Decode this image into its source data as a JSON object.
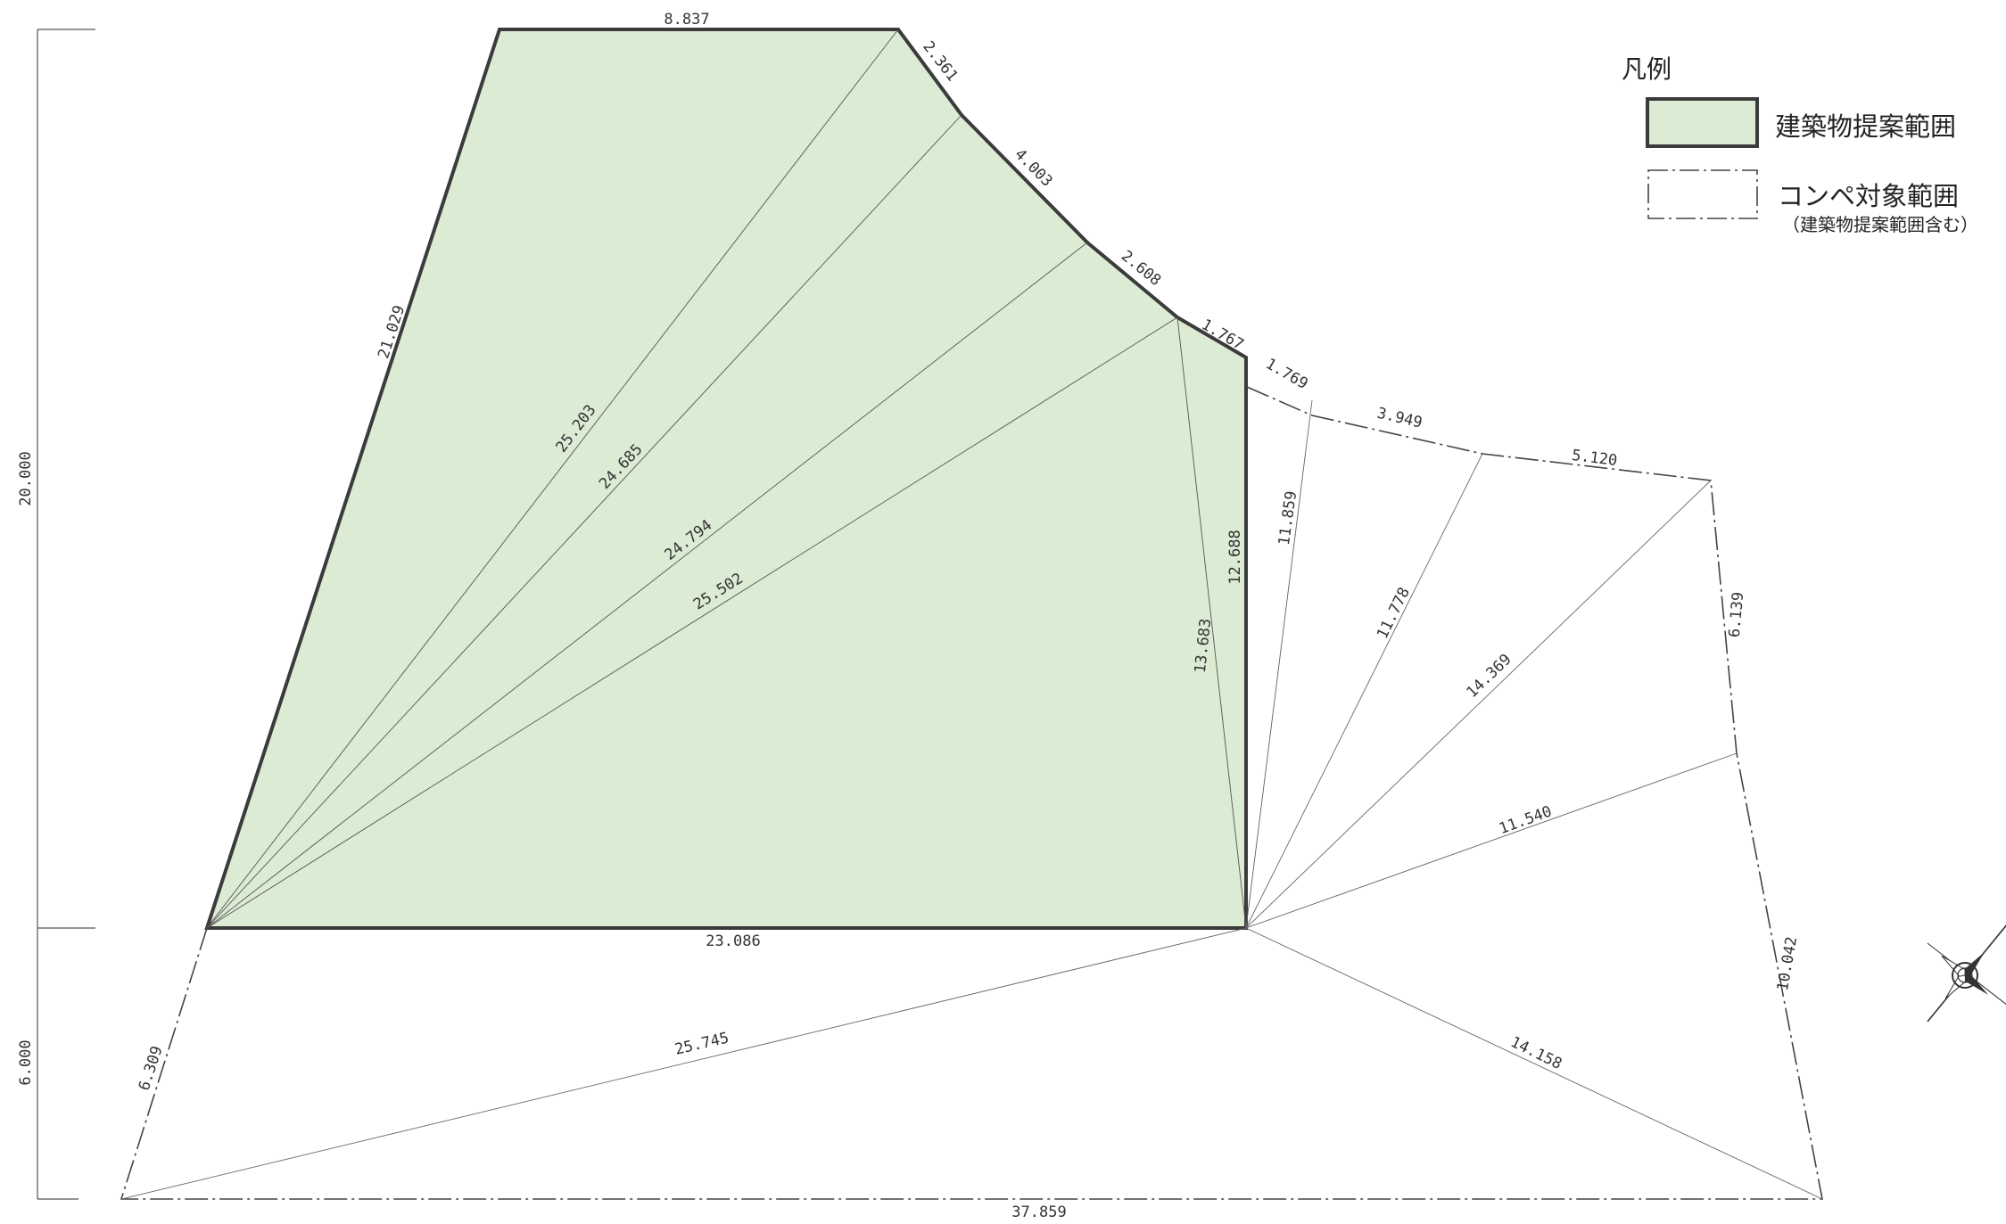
{
  "legend": {
    "title": "凡例",
    "building_area_label": "建築物提案範囲",
    "competition_area_label": "コンペ対象範囲",
    "competition_area_note": "（建築物提案範囲含む）",
    "building_fill_color": "#dbebd4",
    "outline_color": "#3b3b3b"
  },
  "vertical_dimensions": {
    "upper": "20.000",
    "lower": "6.000"
  },
  "building_area_dimensions": {
    "top": "8.837",
    "upper_right": "2.361",
    "right_1": "4.003",
    "right_2": "2.608",
    "right_3": "1.767",
    "right_vertical": "12.688",
    "bottom": "23.086",
    "left": "21.029",
    "diagonal_1": "25.203",
    "diagonal_2": "24.685",
    "diagonal_3": "24.794",
    "diagonal_4": "25.502",
    "diagonal_5": "13.683"
  },
  "competition_area_dimensions": {
    "edge_1": "1.769",
    "edge_2": "3.949",
    "edge_3": "5.120",
    "edge_4": "6.139",
    "edge_5": "10.042",
    "bottom": "37.859",
    "left": "6.309",
    "diagonal_1": "11.859",
    "diagonal_2": "11.778",
    "diagonal_3": "14.369",
    "diagonal_4": "11.540",
    "diagonal_5": "14.158",
    "diagonal_6": "25.745"
  },
  "compass": "north-arrow-icon"
}
